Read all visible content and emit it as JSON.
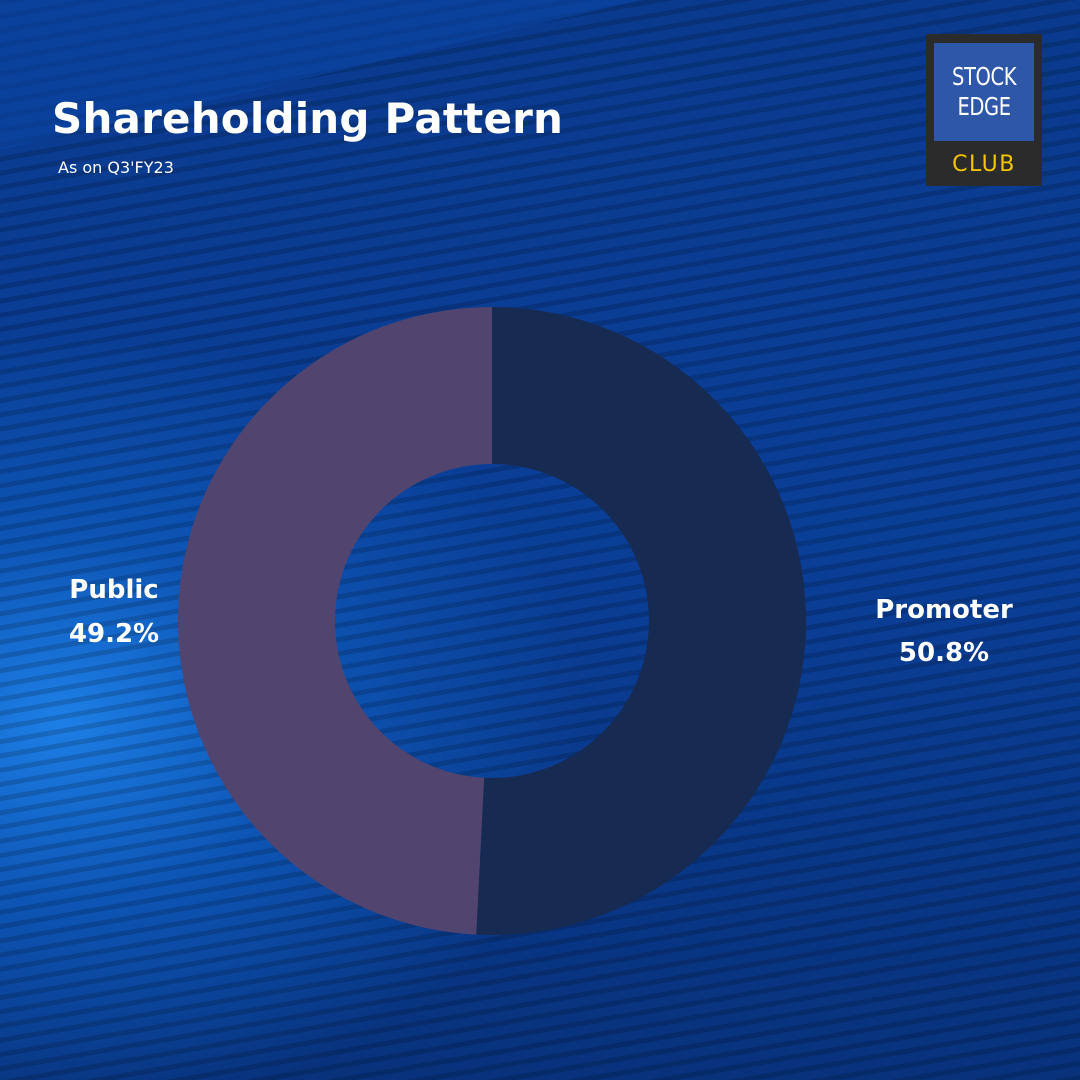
{
  "title": "Shareholding Pattern",
  "subtitle": "As on Q3'FY23",
  "logo": {
    "line1": "STOCK",
    "line2": "EDGE",
    "line3": "CLUB"
  },
  "colors": {
    "promoter": "#172a52",
    "public": "#514570",
    "logo_accent": "#f5c400"
  },
  "chart_data": {
    "type": "pie",
    "variant": "donut",
    "title": "Shareholding Pattern",
    "subtitle": "As on Q3'FY23",
    "slices": [
      {
        "name": "Promoter",
        "value": 50.8,
        "label": "50.8%",
        "color": "#172a52"
      },
      {
        "name": "Public",
        "value": 49.2,
        "label": "49.2%",
        "color": "#514570"
      }
    ],
    "legend": "none"
  }
}
